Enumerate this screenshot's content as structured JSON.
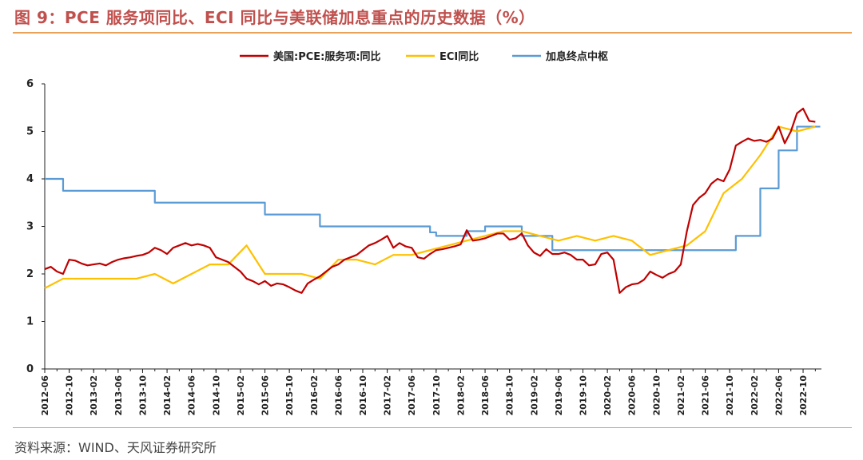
{
  "header": {
    "title": "图 9：PCE 服务项同比、ECI 同比与美联储加息重点的历史数据（%）"
  },
  "footer": {
    "source": "资料来源：WIND、天风证券研究所"
  },
  "colors": {
    "accent_rule": "#e8a25a",
    "title": "#c0504d"
  },
  "chart_data": {
    "type": "line",
    "title": "",
    "xlabel": "",
    "ylabel": "",
    "ylim": [
      0,
      6
    ],
    "yticks": [
      "0",
      "1",
      "2",
      "3",
      "4",
      "5",
      "6"
    ],
    "xlim": [
      "2012-06",
      "2023-01"
    ],
    "xticks": [
      "2012-06",
      "2012-10",
      "2013-02",
      "2013-06",
      "2013-10",
      "2014-02",
      "2014-06",
      "2014-10",
      "2015-02",
      "2015-06",
      "2015-10",
      "2016-02",
      "2016-06",
      "2016-10",
      "2017-02",
      "2017-06",
      "2017-10",
      "2018-02",
      "2018-06",
      "2018-10",
      "2019-02",
      "2019-06",
      "2019-10",
      "2020-02",
      "2020-06",
      "2020-10",
      "2021-02",
      "2021-06",
      "2021-10",
      "2022-02",
      "2022-06",
      "2022-10"
    ],
    "grid": false,
    "legend_position": "top-center",
    "series": [
      {
        "name": "美国:PCE:服务项:同比",
        "color": "#c00000",
        "style": "line",
        "points": [
          [
            "2012-06",
            2.1
          ],
          [
            "2012-07",
            2.15
          ],
          [
            "2012-08",
            2.05
          ],
          [
            "2012-09",
            2.0
          ],
          [
            "2012-10",
            2.3
          ],
          [
            "2012-11",
            2.28
          ],
          [
            "2012-12",
            2.22
          ],
          [
            "2013-01",
            2.18
          ],
          [
            "2013-02",
            2.2
          ],
          [
            "2013-03",
            2.22
          ],
          [
            "2013-04",
            2.18
          ],
          [
            "2013-05",
            2.25
          ],
          [
            "2013-06",
            2.3
          ],
          [
            "2013-07",
            2.33
          ],
          [
            "2013-08",
            2.35
          ],
          [
            "2013-09",
            2.38
          ],
          [
            "2013-10",
            2.4
          ],
          [
            "2013-11",
            2.45
          ],
          [
            "2013-12",
            2.55
          ],
          [
            "2014-01",
            2.5
          ],
          [
            "2014-02",
            2.42
          ],
          [
            "2014-03",
            2.55
          ],
          [
            "2014-04",
            2.6
          ],
          [
            "2014-05",
            2.65
          ],
          [
            "2014-06",
            2.6
          ],
          [
            "2014-07",
            2.63
          ],
          [
            "2014-08",
            2.6
          ],
          [
            "2014-09",
            2.55
          ],
          [
            "2014-10",
            2.35
          ],
          [
            "2014-11",
            2.3
          ],
          [
            "2014-12",
            2.25
          ],
          [
            "2015-01",
            2.15
          ],
          [
            "2015-02",
            2.05
          ],
          [
            "2015-03",
            1.9
          ],
          [
            "2015-04",
            1.85
          ],
          [
            "2015-05",
            1.78
          ],
          [
            "2015-06",
            1.85
          ],
          [
            "2015-07",
            1.75
          ],
          [
            "2015-08",
            1.8
          ],
          [
            "2015-09",
            1.78
          ],
          [
            "2015-10",
            1.72
          ],
          [
            "2015-11",
            1.65
          ],
          [
            "2015-12",
            1.6
          ],
          [
            "2016-01",
            1.8
          ],
          [
            "2016-02",
            1.88
          ],
          [
            "2016-03",
            1.95
          ],
          [
            "2016-04",
            2.05
          ],
          [
            "2016-05",
            2.15
          ],
          [
            "2016-06",
            2.2
          ],
          [
            "2016-07",
            2.3
          ],
          [
            "2016-08",
            2.35
          ],
          [
            "2016-09",
            2.4
          ],
          [
            "2016-10",
            2.5
          ],
          [
            "2016-11",
            2.6
          ],
          [
            "2016-12",
            2.65
          ],
          [
            "2017-01",
            2.72
          ],
          [
            "2017-02",
            2.8
          ],
          [
            "2017-03",
            2.55
          ],
          [
            "2017-04",
            2.65
          ],
          [
            "2017-05",
            2.58
          ],
          [
            "2017-06",
            2.55
          ],
          [
            "2017-07",
            2.35
          ],
          [
            "2017-08",
            2.32
          ],
          [
            "2017-09",
            2.42
          ],
          [
            "2017-10",
            2.5
          ],
          [
            "2017-11",
            2.52
          ],
          [
            "2017-12",
            2.55
          ],
          [
            "2018-01",
            2.58
          ],
          [
            "2018-02",
            2.62
          ],
          [
            "2018-03",
            2.92
          ],
          [
            "2018-04",
            2.7
          ],
          [
            "2018-05",
            2.72
          ],
          [
            "2018-06",
            2.75
          ],
          [
            "2018-07",
            2.8
          ],
          [
            "2018-08",
            2.85
          ],
          [
            "2018-09",
            2.85
          ],
          [
            "2018-10",
            2.72
          ],
          [
            "2018-11",
            2.75
          ],
          [
            "2018-12",
            2.85
          ],
          [
            "2019-01",
            2.6
          ],
          [
            "2019-02",
            2.45
          ],
          [
            "2019-03",
            2.38
          ],
          [
            "2019-04",
            2.52
          ],
          [
            "2019-05",
            2.42
          ],
          [
            "2019-06",
            2.42
          ],
          [
            "2019-07",
            2.45
          ],
          [
            "2019-08",
            2.4
          ],
          [
            "2019-09",
            2.3
          ],
          [
            "2019-10",
            2.3
          ],
          [
            "2019-11",
            2.18
          ],
          [
            "2019-12",
            2.2
          ],
          [
            "2020-01",
            2.42
          ],
          [
            "2020-02",
            2.45
          ],
          [
            "2020-03",
            2.3
          ],
          [
            "2020-04",
            1.6
          ],
          [
            "2020-05",
            1.72
          ],
          [
            "2020-06",
            1.78
          ],
          [
            "2020-07",
            1.8
          ],
          [
            "2020-08",
            1.88
          ],
          [
            "2020-09",
            2.05
          ],
          [
            "2020-10",
            1.98
          ],
          [
            "2020-11",
            1.92
          ],
          [
            "2020-12",
            2.0
          ],
          [
            "2021-01",
            2.05
          ],
          [
            "2021-02",
            2.2
          ],
          [
            "2021-03",
            2.9
          ],
          [
            "2021-04",
            3.45
          ],
          [
            "2021-05",
            3.6
          ],
          [
            "2021-06",
            3.7
          ],
          [
            "2021-07",
            3.9
          ],
          [
            "2021-08",
            4.0
          ],
          [
            "2021-09",
            3.95
          ],
          [
            "2021-10",
            4.2
          ],
          [
            "2021-11",
            4.7
          ],
          [
            "2021-12",
            4.78
          ],
          [
            "2022-01",
            4.85
          ],
          [
            "2022-02",
            4.8
          ],
          [
            "2022-03",
            4.82
          ],
          [
            "2022-04",
            4.78
          ],
          [
            "2022-05",
            4.85
          ],
          [
            "2022-06",
            5.1
          ],
          [
            "2022-07",
            4.75
          ],
          [
            "2022-08",
            5.0
          ],
          [
            "2022-09",
            5.38
          ],
          [
            "2022-10",
            5.48
          ],
          [
            "2022-11",
            5.22
          ],
          [
            "2022-12",
            5.2
          ]
        ]
      },
      {
        "name": "ECI同比",
        "color": "#ffc000",
        "style": "line",
        "points": [
          [
            "2012-06",
            1.7
          ],
          [
            "2012-09",
            1.9
          ],
          [
            "2012-12",
            1.9
          ],
          [
            "2013-03",
            1.9
          ],
          [
            "2013-06",
            1.9
          ],
          [
            "2013-09",
            1.9
          ],
          [
            "2013-12",
            2.0
          ],
          [
            "2014-03",
            1.8
          ],
          [
            "2014-06",
            2.0
          ],
          [
            "2014-09",
            2.2
          ],
          [
            "2014-12",
            2.2
          ],
          [
            "2015-03",
            2.6
          ],
          [
            "2015-06",
            2.0
          ],
          [
            "2015-09",
            2.0
          ],
          [
            "2015-12",
            2.0
          ],
          [
            "2016-03",
            1.9
          ],
          [
            "2016-06",
            2.3
          ],
          [
            "2016-09",
            2.3
          ],
          [
            "2016-12",
            2.2
          ],
          [
            "2017-03",
            2.4
          ],
          [
            "2017-06",
            2.4
          ],
          [
            "2017-09",
            2.5
          ],
          [
            "2017-12",
            2.6
          ],
          [
            "2018-03",
            2.7
          ],
          [
            "2018-06",
            2.8
          ],
          [
            "2018-09",
            2.9
          ],
          [
            "2018-12",
            2.9
          ],
          [
            "2019-03",
            2.8
          ],
          [
            "2019-06",
            2.7
          ],
          [
            "2019-09",
            2.8
          ],
          [
            "2019-12",
            2.7
          ],
          [
            "2020-03",
            2.8
          ],
          [
            "2020-06",
            2.7
          ],
          [
            "2020-09",
            2.4
          ],
          [
            "2020-12",
            2.5
          ],
          [
            "2021-03",
            2.6
          ],
          [
            "2021-06",
            2.9
          ],
          [
            "2021-09",
            3.7
          ],
          [
            "2021-12",
            4.0
          ],
          [
            "2022-03",
            4.5
          ],
          [
            "2022-06",
            5.1
          ],
          [
            "2022-09",
            5.0
          ],
          [
            "2022-12",
            5.1
          ]
        ]
      },
      {
        "name": "加息终点中枢",
        "color": "#5b9bd5",
        "style": "step",
        "points": [
          [
            "2012-06",
            4.0
          ],
          [
            "2012-09",
            3.75
          ],
          [
            "2013-12",
            3.5
          ],
          [
            "2015-06",
            3.25
          ],
          [
            "2016-03",
            3.0
          ],
          [
            "2017-09",
            2.875
          ],
          [
            "2017-10",
            2.8
          ],
          [
            "2018-03",
            2.9
          ],
          [
            "2018-06",
            3.0
          ],
          [
            "2018-12",
            2.8
          ],
          [
            "2019-05",
            2.5
          ],
          [
            "2021-10",
            2.5
          ],
          [
            "2021-11",
            2.8
          ],
          [
            "2022-03",
            3.8
          ],
          [
            "2022-06",
            4.6
          ],
          [
            "2022-09",
            5.1
          ],
          [
            "2022-12",
            5.1
          ]
        ]
      }
    ]
  }
}
